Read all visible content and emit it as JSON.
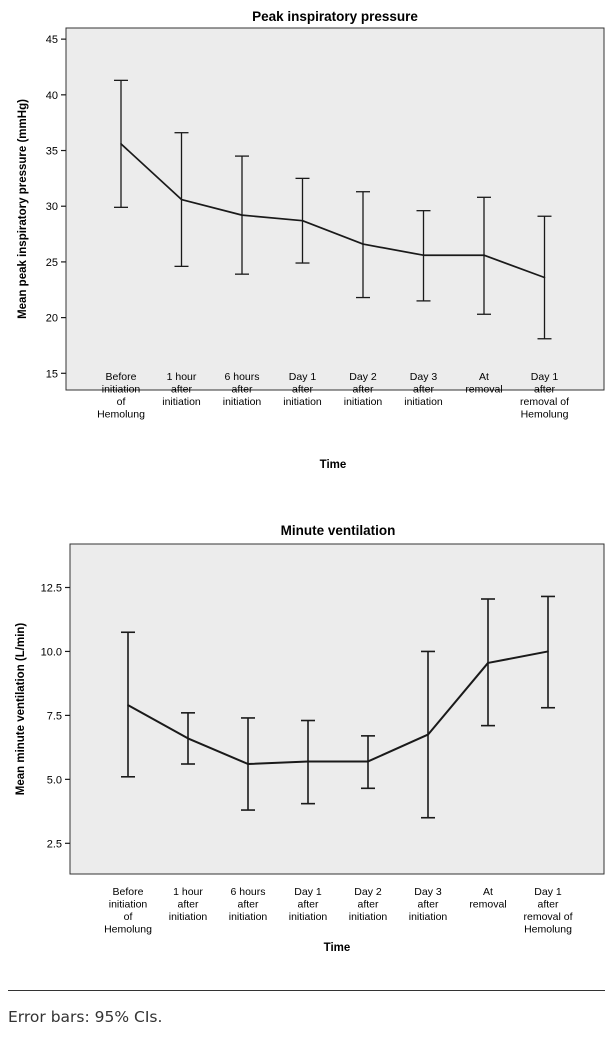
{
  "colors": {
    "plot_bg": "#ececec",
    "line": "#1a1a1a"
  },
  "chart_data": [
    {
      "type": "line",
      "title": "Peak inspiratory pressure",
      "xlabel": "Time",
      "ylabel": "Mean peak inspiratory pressure (mmHg)",
      "ylim": [
        13.5,
        46
      ],
      "yticks": [
        15,
        20,
        25,
        30,
        35,
        40,
        45
      ],
      "categories": [
        [
          "Before",
          "initiation",
          "of",
          "Hemolung"
        ],
        [
          "1 hour",
          "after",
          "initiation"
        ],
        [
          "6 hours",
          "after",
          "initiation"
        ],
        [
          "Day 1",
          "after",
          "initiation"
        ],
        [
          "Day 2",
          "after",
          "initiation"
        ],
        [
          "Day 3",
          "after",
          "initiation"
        ],
        [
          "At",
          "removal"
        ],
        [
          "Day 1",
          "after",
          "removal of",
          "Hemolung"
        ]
      ],
      "values": [
        35.6,
        30.6,
        29.2,
        28.7,
        26.6,
        25.6,
        25.6,
        23.6
      ],
      "ci_lower": [
        29.9,
        24.6,
        23.9,
        24.9,
        21.8,
        21.5,
        20.3,
        18.1
      ],
      "ci_upper": [
        41.3,
        36.6,
        34.5,
        32.5,
        31.3,
        29.6,
        30.8,
        29.1
      ],
      "grid": false
    },
    {
      "type": "line",
      "title": "Minute ventilation",
      "xlabel": "Time",
      "ylabel": "Mean minute ventilation (L/min)",
      "ylim": [
        1.3,
        14.2
      ],
      "yticks": [
        2.5,
        5.0,
        7.5,
        10.0,
        12.5
      ],
      "ytick_labels": [
        "2.5",
        "5.0",
        "7.5",
        "10.0",
        "12.5"
      ],
      "categories": [
        [
          "Before",
          "initiation",
          "of",
          "Hemolung"
        ],
        [
          "1 hour",
          "after",
          "initiation"
        ],
        [
          "6 hours",
          "after",
          "initiation"
        ],
        [
          "Day 1",
          "after",
          "initiation"
        ],
        [
          "Day 2",
          "after",
          "initiation"
        ],
        [
          "Day 3",
          "after",
          "initiation"
        ],
        [
          "At",
          "removal"
        ],
        [
          "Day 1",
          "after",
          "removal of",
          "Hemolung"
        ]
      ],
      "values": [
        7.9,
        6.6,
        5.6,
        5.7,
        5.7,
        6.75,
        9.55,
        10.0
      ],
      "ci_lower": [
        5.1,
        5.6,
        3.8,
        4.05,
        4.65,
        3.5,
        7.1,
        7.8
      ],
      "ci_upper": [
        10.75,
        7.6,
        7.4,
        7.3,
        6.7,
        10.0,
        12.05,
        12.15
      ],
      "grid": false
    }
  ],
  "footnote": "Error bars: 95% CIs."
}
